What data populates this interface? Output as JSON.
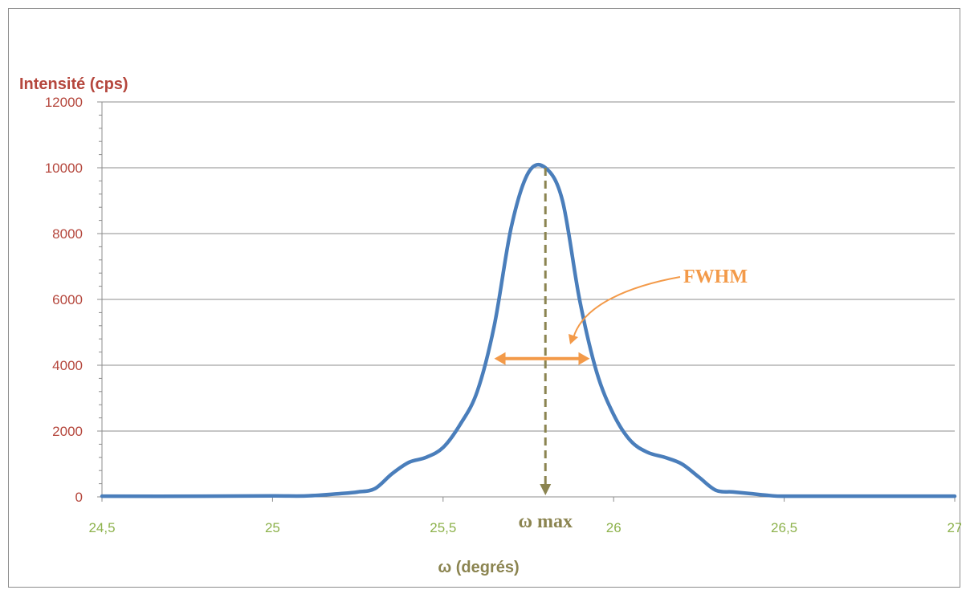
{
  "colors": {
    "curve": "#4a7ebb",
    "y_text": "#b5473d",
    "x_text": "#8db24c",
    "omega_max": "#8b8450",
    "fwhm": "#f39a49",
    "grid": "#8c8c8c"
  },
  "chart_data": {
    "type": "line",
    "title": "",
    "ylabel": "Intensité (cps)",
    "xlabel": "ω (degrés)",
    "xlim": [
      24.5,
      27
    ],
    "ylim": [
      0,
      12000
    ],
    "x_ticks": [
      24.5,
      25,
      25.5,
      26,
      26.5,
      27
    ],
    "x_tick_labels": [
      "24,5",
      "25",
      "25,5",
      "26",
      "26,5",
      "27"
    ],
    "y_ticks": [
      0,
      2000,
      4000,
      6000,
      8000,
      10000,
      12000
    ],
    "y_tick_labels": [
      "0",
      "2000",
      "4000",
      "6000",
      "8000",
      "10000",
      "12000"
    ],
    "grid": true,
    "legend": "none",
    "series": [
      {
        "x": [
          24.5,
          24.8,
          25.0,
          25.1,
          25.2,
          25.25,
          25.3,
          25.35,
          25.4,
          25.45,
          25.5,
          25.55,
          25.6,
          25.65,
          25.7,
          25.75,
          25.8,
          25.85,
          25.9,
          25.95,
          26.0,
          26.05,
          26.1,
          26.15,
          26.2,
          26.25,
          26.3,
          26.35,
          26.4,
          26.45,
          26.5,
          26.7,
          27.0
        ],
        "y": [
          20,
          20,
          30,
          30,
          100,
          150,
          250,
          700,
          1050,
          1200,
          1500,
          2200,
          3200,
          5200,
          8200,
          9850,
          10000,
          9000,
          6000,
          3800,
          2500,
          1700,
          1350,
          1200,
          1000,
          600,
          200,
          150,
          100,
          50,
          20,
          20,
          20
        ]
      }
    ],
    "annotations": {
      "omega_max": {
        "label": "ω max",
        "x": 25.8,
        "y_top": 10000
      },
      "fwhm": {
        "label": "FWHM",
        "x_from": 25.65,
        "x_to": 25.93,
        "y": 4200
      }
    }
  }
}
